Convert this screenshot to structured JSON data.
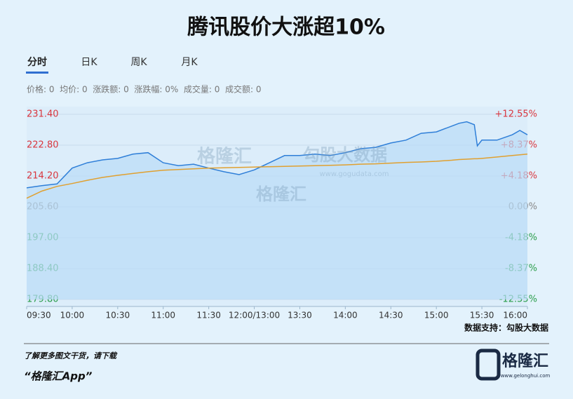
{
  "header": {
    "title": "腾讯股价大涨超10%"
  },
  "tabs": [
    "分时",
    "日K",
    "周K",
    "月K"
  ],
  "info": "价格: 0  均价: 0  涨跌额: 0  涨跌幅: 0%  成交量: 0  成交额: 0",
  "watermark": {
    "brand": "格隆汇",
    "partner": "勾股大数据",
    "url": "www.gogudata.com",
    "brand2": "格隆汇"
  },
  "chart_data": {
    "type": "line",
    "x": [
      0,
      10,
      20,
      30,
      40,
      50,
      60,
      70,
      80,
      90,
      100,
      110,
      120,
      130,
      140,
      150,
      160,
      170,
      180,
      190,
      200,
      210,
      220,
      230,
      240,
      250,
      260,
      270,
      280,
      285,
      290,
      295,
      297,
      300,
      310,
      320,
      325,
      330
    ],
    "series": [
      {
        "name": "价格",
        "color": "#2f7fd8",
        "values": [
          210.9,
          211.5,
          212.0,
          216.4,
          217.9,
          218.7,
          219.1,
          220.3,
          220.7,
          217.9,
          217.1,
          217.5,
          216.4,
          215.4,
          214.6,
          215.9,
          217.9,
          219.9,
          219.9,
          220.3,
          219.9,
          220.7,
          221.8,
          222.2,
          223.4,
          224.2,
          226.1,
          226.5,
          228.1,
          228.9,
          229.3,
          228.5,
          222.6,
          224.2,
          224.2,
          225.7,
          226.9,
          225.7
        ]
      },
      {
        "name": "均价",
        "color": "#e0a030",
        "values": [
          208.0,
          210.0,
          211.3,
          212.1,
          213.0,
          213.8,
          214.4,
          214.9,
          215.4,
          215.8,
          216.0,
          216.2,
          216.4,
          216.5,
          216.6,
          216.7,
          216.8,
          216.9,
          217.0,
          217.1,
          217.2,
          217.3,
          217.5,
          217.6,
          217.8,
          218.0,
          218.1,
          218.3,
          218.6,
          218.8,
          218.9,
          219.0,
          219.0,
          219.1,
          219.5,
          219.9,
          220.1,
          220.3
        ]
      }
    ],
    "xlim": [
      0,
      330
    ],
    "xticks": [
      {
        "value": 0,
        "label": "09:30"
      },
      {
        "value": 30,
        "label": "10:00"
      },
      {
        "value": 60,
        "label": "10:30"
      },
      {
        "value": 90,
        "label": "11:00"
      },
      {
        "value": 120,
        "label": "11:30"
      },
      {
        "value": 150,
        "label": "12:00/13:00"
      },
      {
        "value": 180,
        "label": "13:30"
      },
      {
        "value": 210,
        "label": "14:00"
      },
      {
        "value": 240,
        "label": "14:30"
      },
      {
        "value": 270,
        "label": "15:00"
      },
      {
        "value": 300,
        "label": "15:30"
      },
      {
        "value": 330,
        "label": "16:00"
      }
    ],
    "ylim": [
      179.8,
      231.4
    ],
    "yticks": [
      {
        "value": 231.4,
        "label": "231.40"
      },
      {
        "value": 222.8,
        "label": "222.80"
      },
      {
        "value": 214.2,
        "label": "214.20"
      },
      {
        "value": 205.6,
        "label": "205.60"
      },
      {
        "value": 197,
        "label": "197.00"
      },
      {
        "value": 188.4,
        "label": "188.40"
      },
      {
        "value": 179.8,
        "label": "179.80"
      }
    ],
    "y2lim": [
      -12.55,
      12.55
    ],
    "y2ticks": [
      {
        "value": 12.55,
        "label": "+12.55%"
      },
      {
        "value": 8.37,
        "label": "+8.37%"
      },
      {
        "value": 4.18,
        "label": "+4.18%"
      },
      {
        "value": 0,
        "label": "0.00%"
      },
      {
        "value": -4.18,
        "label": "-4.18%"
      },
      {
        "value": -8.37,
        "label": "-8.37%"
      },
      {
        "value": -12.55,
        "label": "-12.55%"
      }
    ],
    "grid": true,
    "up_color": "#d9363e",
    "down_color": "#2a9d4a",
    "flat_color": "#888888",
    "area_color": "#b9dcf7",
    "source": "数据支持：勾股大数据"
  },
  "footer": {
    "line1": "了解更多图文干货，请下载",
    "line2": "“格隆汇App”",
    "logo": "格隆汇",
    "site": "www.gelonghui.com"
  }
}
